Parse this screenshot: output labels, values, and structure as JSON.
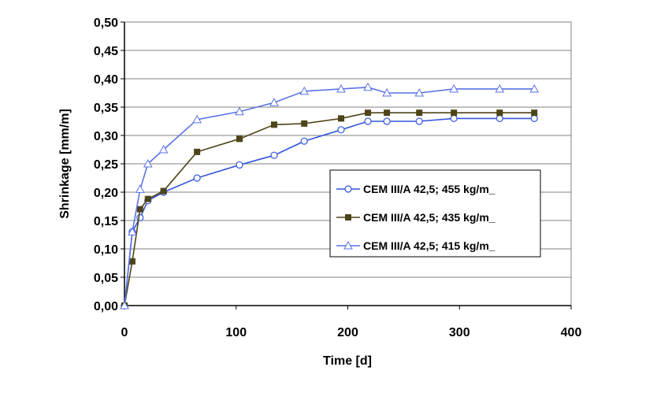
{
  "chart_data": {
    "type": "line",
    "xlabel": "Time [d]",
    "ylabel": "Shrinkage [mm/m]",
    "xlim": [
      0,
      400
    ],
    "ylim": [
      0,
      0.5
    ],
    "x_ticks": [
      0,
      100,
      200,
      300,
      400
    ],
    "x_tick_labels": [
      "0",
      "100",
      "200",
      "300",
      "400"
    ],
    "y_ticks": [
      0,
      0.05,
      0.1,
      0.15,
      0.2,
      0.25,
      0.3,
      0.35,
      0.4,
      0.45,
      0.5
    ],
    "y_tick_labels": [
      "0,00",
      "0,05",
      "0,10",
      "0,15",
      "0,20",
      "0,25",
      "0,30",
      "0,35",
      "0,40",
      "0,45",
      "0,50"
    ],
    "grid": "horizontal",
    "legend_position": "right",
    "series": [
      {
        "name": "CEM III/A 42,5; 455 kg/m_",
        "color": "#3355dd",
        "marker": "circle",
        "x": [
          0,
          7,
          14,
          21,
          35,
          65,
          103,
          134,
          161,
          194,
          218,
          235,
          264,
          295,
          336,
          367
        ],
        "y": [
          0.0,
          0.13,
          0.155,
          0.185,
          0.2,
          0.225,
          0.248,
          0.265,
          0.29,
          0.31,
          0.325,
          0.325,
          0.325,
          0.33,
          0.33,
          0.33
        ]
      },
      {
        "name": "CEM III/A 42,5; 435 kg/m_",
        "color": "#4d4418",
        "marker": "square",
        "x": [
          0,
          7,
          14,
          21,
          35,
          65,
          103,
          134,
          161,
          194,
          218,
          235,
          264,
          295,
          336,
          367
        ],
        "y": [
          0.0,
          0.078,
          0.17,
          0.188,
          0.202,
          0.271,
          0.294,
          0.319,
          0.321,
          0.33,
          0.34,
          0.34,
          0.34,
          0.34,
          0.34,
          0.34
        ]
      },
      {
        "name": "CEM III/A 42,5; 415 kg/m_",
        "color": "#5a73e6",
        "marker": "triangle",
        "x": [
          0,
          7,
          14,
          21,
          35,
          65,
          103,
          134,
          161,
          194,
          218,
          235,
          264,
          295,
          336,
          367
        ],
        "y": [
          0.0,
          0.13,
          0.205,
          0.25,
          0.275,
          0.328,
          0.342,
          0.358,
          0.378,
          0.382,
          0.385,
          0.375,
          0.375,
          0.382,
          0.382,
          0.382
        ]
      }
    ]
  }
}
